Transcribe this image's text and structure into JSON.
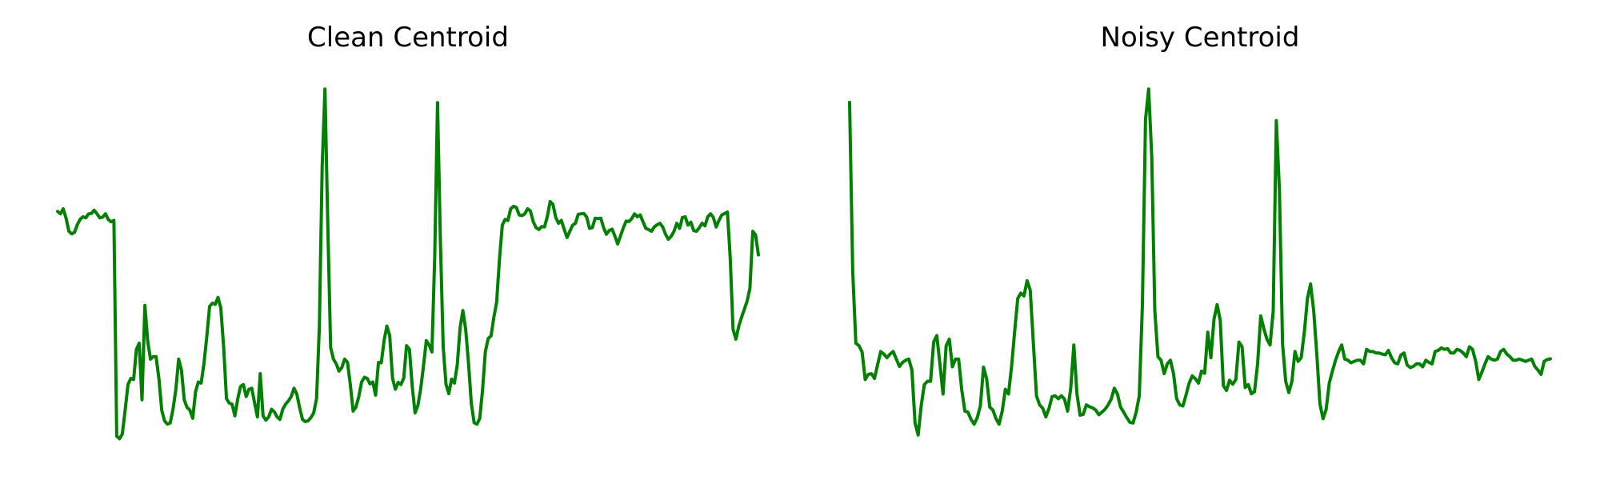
{
  "chart_data": [
    {
      "type": "line",
      "title": "Clean Centroid",
      "color": "#008000",
      "grid": false,
      "axes_visible": false,
      "xlabel": "",
      "ylabel": "",
      "xlim": [
        0,
        180
      ],
      "ylim": [
        0,
        100
      ],
      "x_start": 0,
      "values": [
        63.4,
        62.7,
        64.1,
        61.5,
        57.9,
        57.2,
        57.6,
        59.7,
        61.2,
        61.9,
        61.6,
        62.7,
        62.8,
        63.7,
        62.7,
        61.6,
        61.8,
        62.7,
        61.2,
        60.5,
        60.9,
        1.5,
        0.8,
        2.1,
        8.6,
        15.7,
        17.4,
        17.1,
        25.4,
        27.1,
        11.5,
        37.5,
        27.7,
        22.7,
        23.4,
        23.4,
        17.2,
        8.6,
        5.7,
        4.8,
        5.1,
        8.8,
        14.3,
        22.7,
        19.7,
        11.5,
        9.4,
        8.7,
        6.4,
        13.7,
        16.4,
        16.1,
        21.4,
        28.9,
        37.2,
        38.1,
        37.8,
        39.7,
        36.8,
        25.9,
        11.8,
        10.6,
        10.3,
        7.1,
        11.8,
        15.2,
        15.7,
        12.4,
        14.4,
        14.7,
        10.6,
        6.8,
        18.7,
        7.1,
        5.9,
        6.8,
        8.9,
        8.2,
        6.8,
        6.1,
        8.9,
        10.3,
        11.2,
        12.4,
        14.7,
        13.1,
        9.3,
        6.1,
        5.5,
        5.7,
        6.6,
        7.9,
        11.8,
        31.7,
        75.6,
        97.1,
        60.1,
        25.9,
        22.7,
        21.4,
        19.4,
        20.4,
        22.7,
        21.8,
        15.7,
        8.4,
        9.5,
        12.3,
        16.4,
        17.7,
        17.4,
        15.9,
        16.4,
        12.8,
        21.8,
        21.7,
        27.8,
        31.8,
        29.2,
        17.4,
        14.4,
        16.3,
        15.7,
        17.5,
        26.4,
        25.4,
        15.2,
        7.9,
        9.9,
        14.4,
        20.7,
        27.8,
        26.6,
        24.7,
        50.9,
        93.3,
        55.2,
        26.1,
        15.8,
        13.2,
        17.2,
        16.1,
        21.2,
        31.3,
        36.1,
        30.9,
        21.7,
        10.4,
        5.2,
        4.8,
        6.4,
        14.2,
        24.8,
        28.4,
        29.1,
        34.2,
        38.4,
        50.1,
        59.6,
        61.2,
        60.9,
        64.1,
        64.8,
        64.5,
        62.4,
        62.2,
        62.7,
        64.1,
        63.5,
        60.5,
        58.9,
        58.4,
        59.2,
        59.1,
        61.9,
        66.1,
        65.3,
        61.7,
        60.1,
        60.9,
        58.4,
        56.2,
        57.9,
        59.6,
        60.1,
        62.6,
        62.7,
        62.8,
        61.8,
        58.7,
        58.9,
        61.5,
        61.4,
        61.5,
        58.9,
        57.1,
        58.1,
        58.5,
        56.6,
        54.4,
        56.6,
        58.8,
        60.7,
        60.6,
        61.4,
        62.7,
        61.9,
        62.4,
        60.5,
        58.7,
        58.4,
        57.9,
        59.1,
        59.7,
        60.1,
        59.1,
        57.1,
        55.7,
        56.5,
        57.9,
        60.1,
        58.7,
        61.7,
        61.9,
        59.6,
        60.4,
        58.1,
        57.9,
        58.9,
        60.1,
        59.4,
        61.9,
        62.7,
        61.7,
        59.1,
        60.9,
        62.4,
        62.8,
        63.2,
        50.5,
        30.9,
        28.2,
        31.7,
        34.2,
        36.4,
        38.7,
        42.2,
        57.9,
        56.9,
        51.4
      ]
    },
    {
      "type": "line",
      "title": "Noisy Centroid",
      "color": "#008000",
      "grid": false,
      "axes_visible": false,
      "xlabel": "",
      "ylabel": "",
      "xlim": [
        0,
        180
      ],
      "ylim": [
        0,
        100
      ],
      "x_start": 0,
      "values": [
        93.4,
        46.9,
        27.1,
        26.4,
        24.7,
        17.1,
        18.5,
        18.7,
        17.4,
        21.2,
        24.8,
        24.1,
        23.1,
        24.1,
        24.8,
        22.7,
        20.7,
        21.8,
        22.4,
        22.7,
        19.7,
        5.1,
        1.8,
        9.9,
        15.7,
        16.6,
        16.6,
        27.4,
        29.2,
        21.4,
        13.1,
        26.4,
        28.2,
        20.6,
        22.7,
        22.7,
        14.2,
        8.4,
        8.1,
        6.1,
        4.8,
        6.6,
        9.9,
        20.5,
        17.3,
        9.5,
        8.7,
        6.3,
        4.8,
        8.4,
        14.4,
        13.1,
        20.7,
        30.3,
        39.4,
        40.9,
        40.1,
        44.3,
        41.7,
        27.1,
        12.6,
        10.1,
        9.2,
        6.8,
        9.1,
        12.4,
        12.6,
        11.8,
        12.6,
        11.7,
        8.4,
        14.7,
        26.6,
        13.1,
        7.3,
        7.5,
        10.1,
        9.6,
        9.3,
        8.7,
        7.4,
        8.1,
        8.9,
        10.1,
        11.7,
        14.7,
        13.1,
        9.5,
        8.1,
        6.6,
        5.3,
        5.1,
        8.1,
        12.6,
        37.6,
        88.7,
        97.1,
        78.4,
        36.1,
        23.4,
        22.4,
        18.7,
        21.4,
        22.4,
        18.7,
        11.8,
        10.1,
        9.8,
        12.8,
        16.1,
        18.1,
        17.3,
        16.1,
        19.4,
        18.8,
        30.1,
        23.1,
        33.7,
        37.7,
        33.4,
        15.4,
        14.1,
        16.9,
        15.8,
        17.1,
        27.4,
        26.1,
        14.9,
        15.7,
        13.2,
        13.7,
        21.4,
        34.6,
        31.1,
        28.2,
        26.6,
        35.9,
        88.4,
        69.1,
        26.9,
        16.6,
        13.5,
        16.6,
        24.8,
        22.1,
        23.1,
        30.1,
        39.4,
        43.4,
        36.1,
        24.1,
        10.4,
        6.3,
        8.9,
        16.1,
        19.4,
        22.4,
        24.8,
        26.6,
        22.7,
        22.4,
        21.7,
        22.1,
        22.4,
        22.4,
        21.4,
        25.4,
        24.8,
        24.8,
        24.4,
        24.4,
        24.1,
        23.9,
        25.1,
        23.1,
        21.7,
        21.4,
        23.8,
        24.4,
        21.1,
        20.4,
        20.7,
        21.4,
        21.4,
        20.6,
        22.4,
        21.8,
        21.4,
        24.8,
        25.1,
        25.8,
        25.4,
        25.6,
        24.4,
        24.4,
        25.4,
        25.1,
        24.4,
        23.4,
        26.1,
        25.4,
        22.1,
        17.1,
        19.1,
        21.4,
        23.4,
        22.7,
        22.4,
        22.7,
        24.8,
        25.4,
        24.1,
        23.4,
        22.4,
        22.4,
        22.7,
        22.4,
        22.1,
        22.4,
        22.7,
        20.7,
        19.7,
        18.5,
        22.1,
        22.6,
        22.8
      ]
    }
  ]
}
